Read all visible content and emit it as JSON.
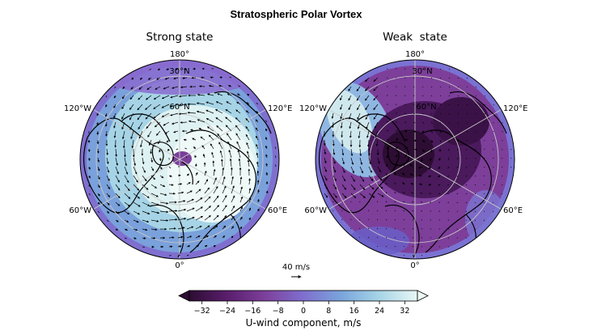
{
  "figure": {
    "title": "Stratospheric Polar Vortex",
    "reference_arrow_label": "40 m/s",
    "colorbar_label": "U-wind component, m/s"
  },
  "chart_data": {
    "type": "heatmap",
    "title": "Stratospheric Polar Vortex",
    "projection": "north-polar-stereographic",
    "colormap": [
      "#2d0d33",
      "#5a1f6e",
      "#7d3f9a",
      "#7f6fcf",
      "#7aa6dc",
      "#a6d4e6",
      "#e8f6f5"
    ],
    "colorbar": {
      "label": "U-wind component, m/s",
      "ticks": [
        -32,
        -24,
        -16,
        -8,
        0,
        8,
        16,
        24,
        32
      ],
      "range": [
        -36,
        36
      ],
      "extend": "both"
    },
    "reference_vector": {
      "label": "40 m/s",
      "value": 40
    },
    "panels": [
      {
        "name": "Strong state",
        "longitude_labels": [
          "180°",
          "120°E",
          "60°E",
          "0°",
          "60°W",
          "120°W"
        ],
        "latitude_labels": [
          "30°N",
          "60°N"
        ],
        "latitude_range": [
          20,
          90
        ],
        "vortex": "strong westerly (positive U) circumpolar jet, strongest around 55–65°N",
        "typical_u": 28,
        "min_u": 4,
        "max_u": 36
      },
      {
        "name": "Weak  state",
        "longitude_labels": [
          "180°",
          "120°E",
          "60°E",
          "0°",
          "60°W",
          "120°W"
        ],
        "latitude_labels": [
          "30°N",
          "60°N"
        ],
        "latitude_range": [
          20,
          90
        ],
        "vortex": "weak, displaced vortex with easterly (negative U) flow over the pole and Eurasia",
        "typical_u": -18,
        "min_u": -34,
        "max_u": 30
      }
    ]
  }
}
